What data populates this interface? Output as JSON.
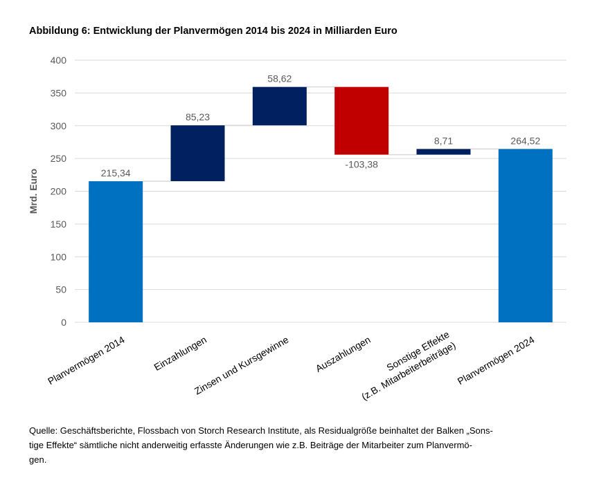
{
  "chart_data": {
    "type": "bar",
    "subtype": "waterfall",
    "title": "Abbildung 6: Entwicklung der Planvermögen 2014 bis 2024 in Milliarden Euro",
    "ylabel": "Mrd. Euro",
    "xlabel": "",
    "ylim": [
      0,
      400
    ],
    "yticks": [
      "0",
      "50",
      "100",
      "150",
      "200",
      "250",
      "300",
      "350",
      "400"
    ],
    "grid": true,
    "categories": [
      [
        "Planvermögen 2014"
      ],
      [
        "Einzahlungen"
      ],
      [
        "Zinsen und Kursgewinne"
      ],
      [
        "Auszahlungen"
      ],
      [
        "Sonstige Effekte",
        "(z.B. Mitarbeiterbeiträge)"
      ],
      [
        "Planvermögen 2024"
      ]
    ],
    "bars": [
      {
        "start": 0,
        "end": 215.34,
        "label": "215,34",
        "kind": "total"
      },
      {
        "start": 215.34,
        "end": 300.57,
        "label": "85,23",
        "kind": "increase"
      },
      {
        "start": 300.57,
        "end": 359.19,
        "label": "58,62",
        "kind": "increase"
      },
      {
        "start": 359.19,
        "end": 255.81,
        "label": "-103,38",
        "kind": "decrease"
      },
      {
        "start": 255.81,
        "end": 264.52,
        "label": "8,71",
        "kind": "increase"
      },
      {
        "start": 0,
        "end": 264.52,
        "label": "264,52",
        "kind": "total"
      }
    ],
    "colors": {
      "total": "#0070c0",
      "increase": "#002060",
      "decrease": "#c00000",
      "grid": "#d9d9d9",
      "connector": "#d9d9d9",
      "text": "#595959"
    }
  },
  "source": {
    "lines": [
      "Quelle: Geschäftsberichte, Flossbach von Storch Research Institute, als Residualgröße beinhaltet der Balken „Sons-",
      "tige Effekte“ sämtliche nicht anderweitig erfasste Änderungen wie z.B. Beiträge der Mitarbeiter zum Planvermö-",
      "gen."
    ]
  }
}
